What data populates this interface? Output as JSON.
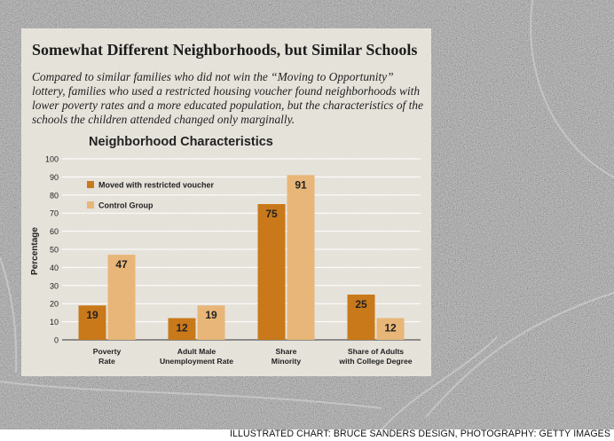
{
  "header": {
    "title": "Somewhat Different Neighborhoods, but Similar Schools",
    "subtitle": "Compared to similar families who did not win the “Moving to Opportunity” lottery, families who used a restricted housing voucher found neighborhoods with lower poverty rates and a more educated population, but the characteristics of the schools the children attended changed only marginally."
  },
  "credit": "ILLUSTRATED CHART: BRUCE SANDERS DESIGN, PHOTOGRAPHY: GETTY IMAGES",
  "chart_data": {
    "type": "bar",
    "title": "Neighborhood Characteristics",
    "xlabel": "",
    "ylabel": "Percentage",
    "ylim": [
      0,
      100
    ],
    "yticks": [
      "0",
      "10",
      "20",
      "30",
      "40",
      "50",
      "60",
      "70",
      "80",
      "90",
      "100"
    ],
    "grid": true,
    "legend": "top-left",
    "categories": [
      [
        "Poverty",
        "Rate"
      ],
      [
        "Adult Male",
        "Unemployment Rate"
      ],
      [
        "Share",
        "Minority"
      ],
      [
        "Share of Adults",
        "with College Degree"
      ]
    ],
    "series": [
      {
        "name": "Moved with restricted voucher",
        "color": "#c9791a",
        "values": [
          19,
          12,
          75,
          25
        ]
      },
      {
        "name": "Control Group",
        "color": "#e8b678",
        "values": [
          47,
          19,
          91,
          12
        ]
      }
    ]
  }
}
